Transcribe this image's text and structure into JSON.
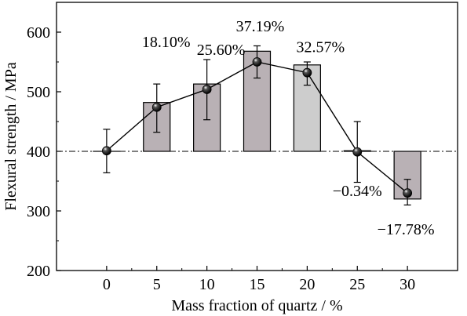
{
  "chart_data": {
    "type": "bar",
    "xlabel": "Mass fraction of quartz / %",
    "ylabel": "Flexural strength / MPa",
    "x": [
      0,
      5,
      10,
      15,
      20,
      25,
      30
    ],
    "x_tick_labels": [
      "0",
      "5",
      "10",
      "15",
      "20",
      "25",
      "30"
    ],
    "xlim": [
      -5,
      35
    ],
    "ylim": [
      200,
      650
    ],
    "y_ticks": [
      200,
      300,
      400,
      500,
      600
    ],
    "y_tick_labels": [
      "200",
      "300",
      "400",
      "500",
      "600"
    ],
    "baseline": 400,
    "bars": {
      "tops": [
        400,
        482,
        513,
        568,
        545,
        401,
        320
      ],
      "colors": [
        "#b9b1b5",
        "#b9b1b5",
        "#b9b1b5",
        "#b9b1b5",
        "#cdcdcd",
        "#b9b1b5",
        "#b9b1b5"
      ]
    },
    "line": {
      "values": [
        401,
        474,
        504,
        550,
        532,
        399,
        330
      ],
      "error_upper": [
        437,
        513,
        554,
        577,
        550,
        450,
        353
      ],
      "error_lower": [
        364,
        432,
        453,
        523,
        511,
        348,
        310
      ]
    },
    "data_labels": [
      "",
      "18.10%",
      "25.60%",
      "37.19%",
      "32.57%",
      "−0.34%",
      "−17.78%"
    ],
    "reference_line": {
      "y": 400,
      "style": "dash-dot"
    },
    "grid": false,
    "legend": "none",
    "colors": {
      "bar_stroke": "#000000",
      "line": "#000000",
      "marker": "#000000",
      "highlight_bar": "#cdcdcd"
    }
  }
}
